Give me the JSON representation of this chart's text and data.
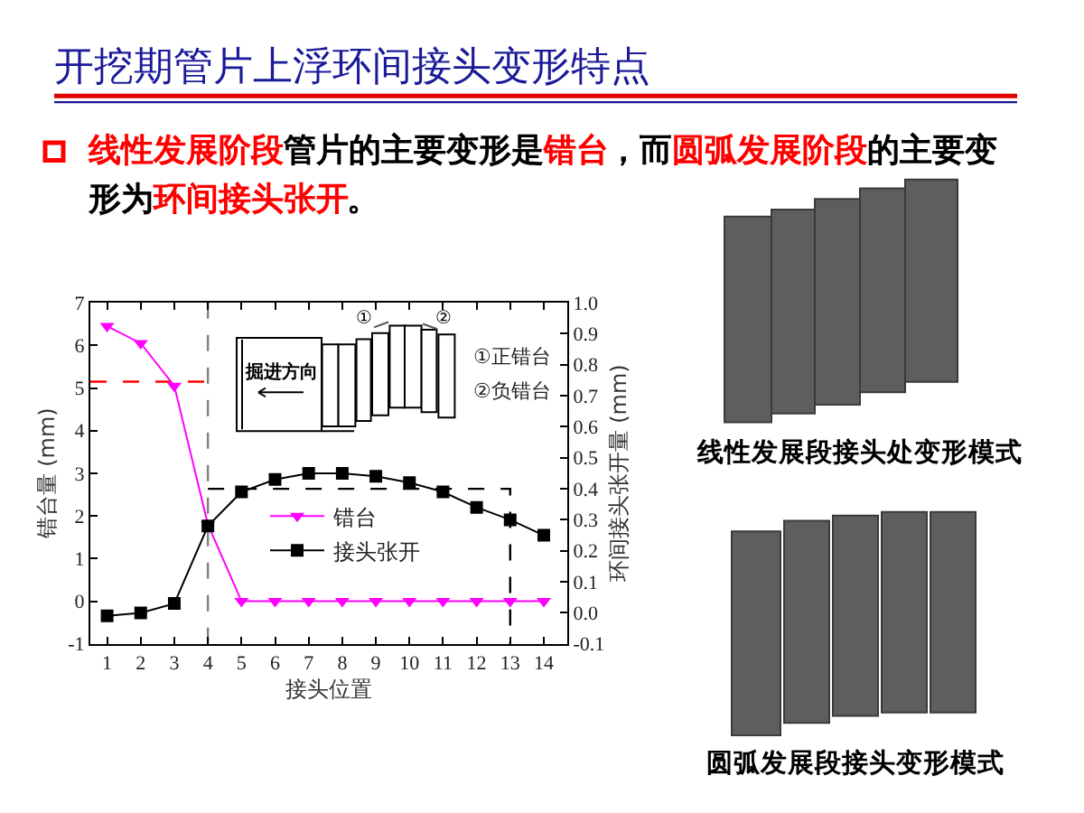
{
  "chart_data": {
    "type": "line",
    "title": "开挖期管片上浮环间接头变形特点",
    "xlabel": "接头位置",
    "ylabel": "错台量 (mm)",
    "y2label": "环间接头张开量 (mm)",
    "x": [
      1,
      2,
      3,
      4,
      5,
      6,
      7,
      8,
      9,
      10,
      11,
      12,
      13,
      14
    ],
    "xlim": [
      0.5,
      14.7
    ],
    "xticks": [
      1,
      2,
      3,
      4,
      5,
      6,
      7,
      8,
      9,
      10,
      11,
      12,
      13,
      14
    ],
    "ylim": [
      -1,
      7
    ],
    "yticks": [
      -1,
      0,
      1,
      2,
      3,
      4,
      5,
      6,
      7
    ],
    "y2lim": [
      -0.1,
      1.0
    ],
    "y2ticks": [
      -0.1,
      {
        "value": 0,
        "label": "0.0"
      },
      0.1,
      0.2,
      0.3,
      0.4,
      0.5,
      0.6,
      0.7,
      0.8,
      0.9,
      {
        "value": 1,
        "label": "1.0"
      }
    ],
    "series": [
      {
        "type": "line",
        "color": "#ff0000",
        "line_style": "dashed",
        "marker": "none",
        "x": [
          0.5,
          4
        ],
        "values": [
          5.15,
          5.15
        ]
      },
      {
        "type": "line",
        "axis": "y2",
        "color": "#000000",
        "line_style": "dashed",
        "marker": "none",
        "x": [
          4,
          13,
          13
        ],
        "values": [
          0.4,
          0.4,
          -0.1
        ]
      },
      {
        "name": "错台",
        "color": "#ff00ff",
        "marker": "triangle-down",
        "values": [
          6.45,
          6.05,
          5.05,
          1.8,
          0,
          0,
          0,
          0,
          0,
          0,
          0,
          0,
          0,
          0
        ]
      },
      {
        "name": "接头张开",
        "axis": "y2",
        "color": "#000000",
        "marker": "square",
        "values": [
          -0.01,
          0,
          0.03,
          0.28,
          0.39,
          0.43,
          0.45,
          0.45,
          0.44,
          0.42,
          0.39,
          0.34,
          0.3,
          0.25
        ]
      }
    ],
    "ref_lines": [
      {
        "axis": "x",
        "value": 4,
        "color": "#808080",
        "line_style": "dashed"
      }
    ],
    "legend": "bottom",
    "line_style": "solid",
    "annotations": [
      "掘进方向",
      "①",
      "②",
      "①正错台",
      "②负错台",
      "线性发展段接头处变形模式",
      "圆弧发展段接头变形模式",
      "线性发展阶段",
      "管片的主要变形是",
      "错台",
      "，而",
      "圆弧发展阶段",
      "的主要变",
      "形为",
      "环间接头张开",
      "。"
    ]
  }
}
